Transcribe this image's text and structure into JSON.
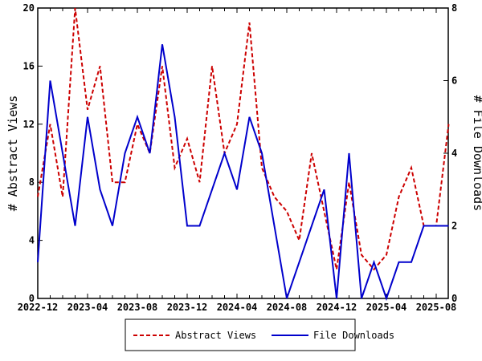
{
  "chart_data": {
    "type": "line",
    "x": [
      "2022-12",
      "2023-01",
      "2023-02",
      "2023-03",
      "2023-04",
      "2023-05",
      "2023-06",
      "2023-07",
      "2023-08",
      "2023-09",
      "2023-10",
      "2023-11",
      "2023-12",
      "2024-01",
      "2024-02",
      "2024-03",
      "2024-04",
      "2024-05",
      "2024-06",
      "2024-07",
      "2024-08",
      "2024-09",
      "2024-10",
      "2024-11",
      "2024-12",
      "2025-01",
      "2025-02",
      "2025-03",
      "2025-04",
      "2025-05",
      "2025-06",
      "2025-07",
      "2025-08",
      "2025-09"
    ],
    "xticks": [
      "2022-12",
      "2023-04",
      "2023-08",
      "2023-12",
      "2024-04",
      "2024-08",
      "2024-12",
      "2025-04",
      "2025-08"
    ],
    "series": [
      {
        "name": "Abstract Views",
        "axis": "left",
        "color": "#cc0000",
        "style": "dashed",
        "values": [
          7,
          12,
          7,
          20,
          13,
          16,
          8,
          8,
          12,
          10,
          16,
          9,
          11,
          8,
          16,
          10,
          12,
          19,
          9,
          7,
          6,
          4,
          10,
          6,
          2,
          8,
          3,
          2,
          3,
          7,
          9,
          5,
          5,
          12
        ]
      },
      {
        "name": "File Downloads",
        "axis": "right",
        "color": "#0000cc",
        "style": "solid",
        "values": [
          1,
          6,
          4,
          2,
          5,
          3,
          2,
          4,
          5,
          4,
          7,
          5,
          2,
          2,
          3,
          4,
          3,
          5,
          4,
          2,
          0,
          1,
          2,
          3,
          0,
          4,
          0,
          1,
          0,
          1,
          1,
          2,
          2,
          2
        ]
      }
    ],
    "ylabel": "# Abstract Views",
    "y2label": "# File Downloads",
    "ylim": [
      0,
      20
    ],
    "yticks": [
      "0",
      "4",
      "8",
      "12",
      "16",
      "20"
    ],
    "y2lim": [
      0,
      8
    ],
    "y2ticks": [
      "0",
      "2",
      "4",
      "6",
      "8"
    ],
    "legend": "bottom-center"
  }
}
